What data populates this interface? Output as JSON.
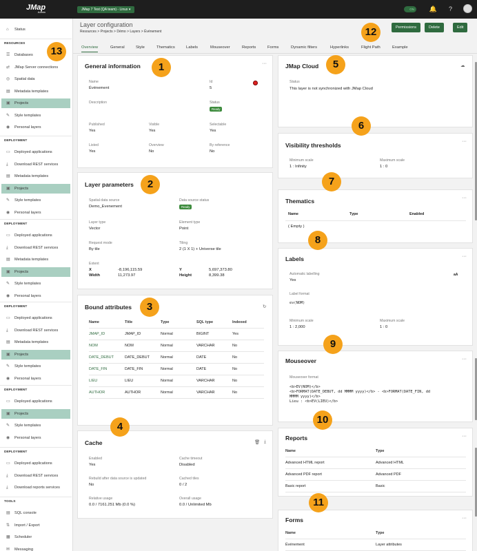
{
  "topbar": {
    "logo": "JMap",
    "logo_sub": "Admin",
    "env": "JMap 7 Test (QA team) - Linux",
    "toggle": "ON"
  },
  "sidebar": {
    "status": "Status",
    "resources": {
      "title": "RESOURCES",
      "items": [
        "Databases",
        "JMap Server connections",
        "Spatial data",
        "Metadata templates",
        "Projects",
        "Style templates",
        "Personal layers"
      ]
    },
    "deploy1": {
      "title": "DEPLOYMENT",
      "items": [
        "Deployed applications",
        "Download REST services",
        "Metadata templates",
        "Projects",
        "Style templates",
        "Personal layers"
      ]
    },
    "deploy2": {
      "title": "DEPLOYMENT",
      "items": [
        "Deployed applications",
        "Download REST services",
        "Metadata templates",
        "Projects",
        "Style templates",
        "Personal layers"
      ]
    },
    "deploy3": {
      "title": "DEPLOYMENT",
      "items": [
        "Deployed applications",
        "Download REST services",
        "Metadata templates",
        "Projects",
        "Style templates",
        "Personal layers"
      ]
    },
    "deploy4": {
      "title": "DEPLOYMENT",
      "items": [
        "Deployed applications",
        "Projects",
        "Style templates",
        "Personal layers"
      ]
    },
    "deploy5": {
      "title": "DEPLOYMENT",
      "items": [
        "Deployed applications",
        "Download REST services",
        "Download reports services"
      ]
    },
    "tools": {
      "title": "TOOLS",
      "items": [
        "SQL console",
        "Import / Export",
        "Scheduler",
        "Messaging"
      ]
    }
  },
  "header": {
    "title": "Layer configuration",
    "breadcrumb": "Resources  >  Projects  >  Démo  >  Layers  >  Événement",
    "buttons": {
      "permissions": "Permissions",
      "delete": "Delete",
      "edit": "Edit"
    }
  },
  "tabs": [
    "Overview",
    "General",
    "Style",
    "Thematics",
    "Labels",
    "Mouseover",
    "Reports",
    "Forms",
    "Dynamic filters",
    "Hyperlinks",
    "Flight Path",
    "Example"
  ],
  "callouts": [
    "1",
    "2",
    "3",
    "4",
    "5",
    "6",
    "7",
    "8",
    "9",
    "10",
    "11",
    "12",
    "13"
  ],
  "general": {
    "title": "General information",
    "name_l": "Name",
    "name": "Événement",
    "id_l": "Id",
    "id": "5",
    "desc_l": "Description",
    "status_l": "Status",
    "status": "Ready",
    "published_l": "Published",
    "published": "Yes",
    "visible_l": "Visible",
    "visible": "Yes",
    "selectable_l": "Selectable",
    "selectable": "Yes",
    "listed_l": "Listed",
    "listed": "Yes",
    "overview_l": "Overview",
    "overview": "No",
    "byref_l": "By reference",
    "byref": "No"
  },
  "params": {
    "title": "Layer parameters",
    "src_l": "Spatial data source",
    "src": "Demo_Evenement",
    "srcstatus_l": "Data source status",
    "srcstatus": "Ready",
    "type_l": "Layer type",
    "type": "Vector",
    "elem_l": "Element type",
    "elem": "Point",
    "req_l": "Request mode",
    "req": "By tile",
    "tiling_l": "Tiling",
    "tiling": "2 (1 X 1) + Universe tile",
    "extent_l": "Extent",
    "x_l": "X",
    "x": "-8,196,115.59",
    "y_l": "Y",
    "y": "5,697,373.80",
    "w_l": "Width",
    "w": "11,273.97",
    "h_l": "Height",
    "h": "8,399.38"
  },
  "bound": {
    "title": "Bound attributes",
    "cols": [
      "Name",
      "Title",
      "Type",
      "SQL type",
      "Indexed"
    ],
    "rows": [
      [
        "JMAP_ID",
        "JMAP_ID",
        "Normal",
        "BIGINT",
        "Yes"
      ],
      [
        "NOM",
        "NOM",
        "Normal",
        "VARCHAR",
        "No"
      ],
      [
        "DATE_DEBUT",
        "DATE_DEBUT",
        "Normal",
        "DATE",
        "No"
      ],
      [
        "DATE_FIN",
        "DATE_FIN",
        "Normal",
        "DATE",
        "No"
      ],
      [
        "LIEU",
        "LIEU",
        "Normal",
        "VARCHAR",
        "No"
      ],
      [
        "AUTHOR",
        "AUTHOR",
        "Normal",
        "VARCHAR",
        "No"
      ]
    ]
  },
  "cache": {
    "title": "Cache",
    "enabled_l": "Enabled",
    "enabled": "Yes",
    "timeout_l": "Cache timeout",
    "timeout": "Disabled",
    "rebuild_l": "Rebuild after data source is updated",
    "rebuild": "No",
    "tiles_l": "Cached tiles",
    "tiles": "0 / 2",
    "rel_l": "Relative usage",
    "rel": "0.0 / 7161.251 Mb (0.0 %)",
    "ovr_l": "Overall usage",
    "ovr": "0.0 / Unlimited Mb"
  },
  "cloud": {
    "title": "JMap Cloud",
    "status_l": "Status",
    "status": "This layer is not synchronized with JMap Cloud"
  },
  "vis": {
    "title": "Visibility thresholds",
    "min_l": "Minimum scale",
    "min": "1 : Infinity",
    "max_l": "Maximum scale",
    "max": "1 : 0"
  },
  "them": {
    "title": "Thematics",
    "cols": [
      "Name",
      "Type",
      "Enabled"
    ],
    "empty": "( Empty )"
  },
  "labels": {
    "title": "Labels",
    "auto_l": "Automatic labelling",
    "auto": "Yes",
    "fmt_l": "Label format",
    "fmt": "ev(NOM)",
    "min_l": "Minimum scale",
    "min": "1 : 2,000",
    "max_l": "Maximum scale",
    "max": "1 : 0",
    "aa": "aA"
  },
  "mouse": {
    "title": "Mouseover",
    "fmt_l": "Mouseover format",
    "lines": [
      "<b>EV(NOM)</b>",
      "<b>FORMAT(DATE_DEBUT, dd MMMM yyyy)</b> - <b>FORMAT(DATE_FIN, dd",
      "MMMM yyyy)</b>",
      "Lieu : <b>EV(LIEU)</b>"
    ]
  },
  "reports": {
    "title": "Reports",
    "cols": [
      "Name",
      "Type"
    ],
    "rows": [
      [
        "Advanced HTML report",
        "Advanced HTML"
      ],
      [
        "Advanced PDF report",
        "Advanced PDF"
      ],
      [
        "Basic report",
        "Basic"
      ]
    ]
  },
  "forms": {
    "title": "Forms",
    "cols": [
      "Name",
      "Type"
    ],
    "rows": [
      [
        "Événement",
        "Layer attributes"
      ]
    ]
  }
}
